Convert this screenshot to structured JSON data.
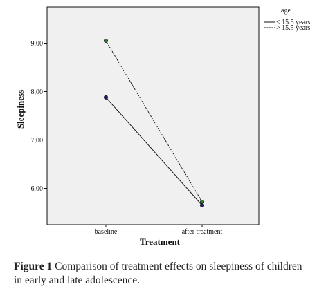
{
  "chart_data": {
    "type": "line",
    "categories": [
      "baseline",
      "after treatment"
    ],
    "xlabel": "Treatment",
    "ylabel": "Sleepiness",
    "ylim": [
      5.25,
      9.75
    ],
    "yticks": [
      6.0,
      7.0,
      8.0,
      9.0
    ],
    "ytick_labels": [
      "6,00",
      "7,00",
      "8,00",
      "9,00"
    ],
    "legend": {
      "title": "age",
      "placement": "top-right outside"
    },
    "series": [
      {
        "name": "< 15.5 years",
        "values": [
          7.88,
          5.65
        ],
        "line_style": "solid",
        "marker_color": "#1a1a6e"
      },
      {
        "name": "> 15.5 years",
        "values": [
          9.05,
          5.72
        ],
        "line_style": "dashed",
        "marker_color": "#2e7d2e"
      }
    ],
    "plot_background": "#f0f0f0",
    "grid": false
  },
  "caption": {
    "label": "Figure 1",
    "text": "Comparison of treatment effects on sleepiness of children in early and late adolescence."
  }
}
